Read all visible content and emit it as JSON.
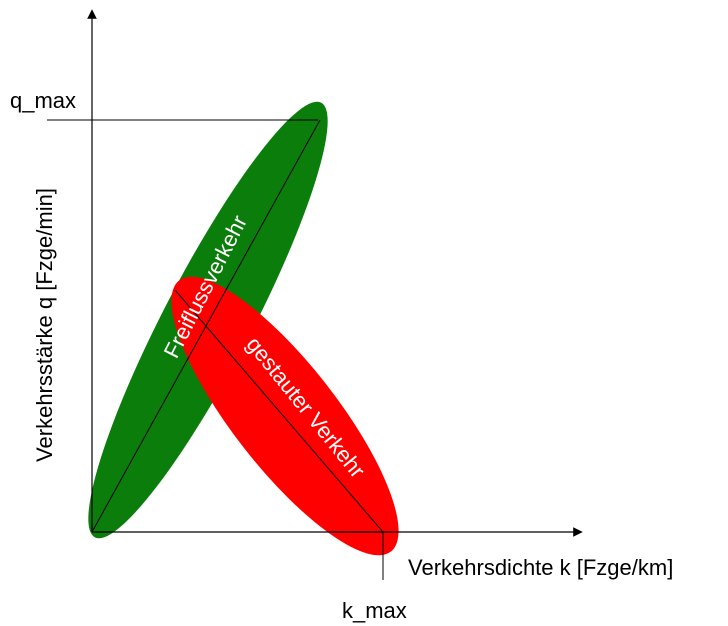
{
  "diagram": {
    "y_axis_label": "Verkehrsstärke q  [Fzge/min]",
    "x_axis_label": "Verkehrsdichte k [Fzge/km]",
    "q_max_label": "q_max",
    "k_max_label": "k_max",
    "regions": [
      {
        "name": "free-flow",
        "label": "Freiflussverkehr",
        "color": "#0a7d0a"
      },
      {
        "name": "congested",
        "label": "gestauter Verkehr",
        "color": "#ff0000"
      }
    ],
    "colors": {
      "axis": "#000000",
      "label_inside": "#ffffff"
    }
  }
}
